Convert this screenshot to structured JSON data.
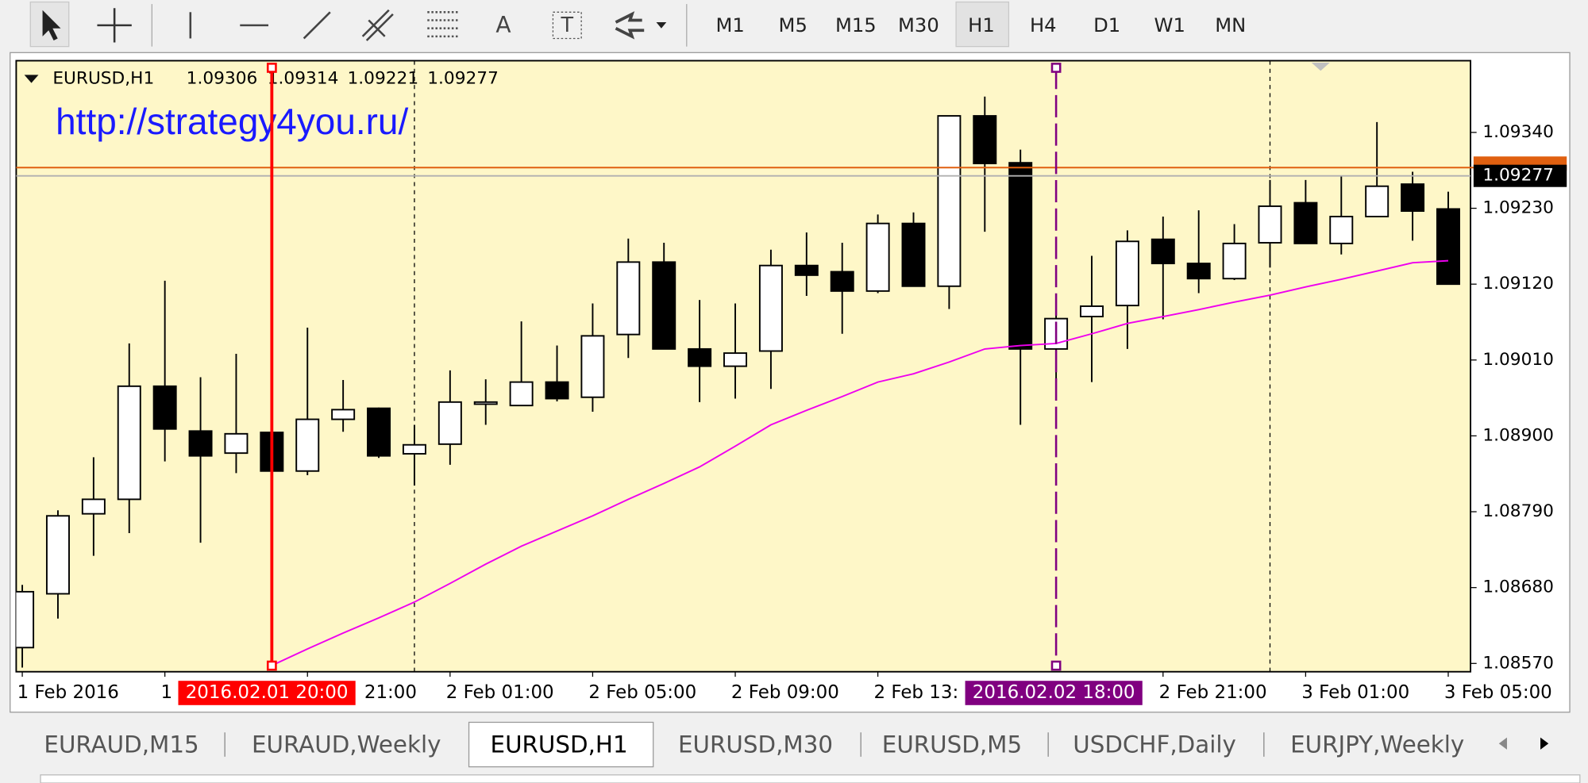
{
  "toolbar": {
    "text_tool": "A",
    "timeframes": [
      "M1",
      "M5",
      "M15",
      "M30",
      "H1",
      "H4",
      "D1",
      "W1",
      "MN"
    ],
    "active_timeframe": "H1"
  },
  "chart_data": {
    "type": "candlestick",
    "symbol": "EURUSD,H1",
    "ohlc_header": [
      1.09306,
      1.09314,
      1.09221,
      1.09277
    ],
    "watermark": "http://strategy4you.ru/",
    "categories": [
      "1 Feb 2016",
      null,
      null,
      null,
      "1",
      null,
      null,
      null,
      "21:00",
      null,
      null,
      null,
      "2 Feb 01:00",
      null,
      null,
      null,
      "2 Feb 05:00",
      null,
      null,
      null,
      "2 Feb 09:00",
      null,
      null,
      null,
      "2 Feb 13:",
      null,
      null,
      null,
      null,
      null,
      null,
      null,
      "2 Feb 21:00",
      null,
      null,
      null,
      "3 Feb 01:00",
      null,
      null,
      null,
      "3 Feb 05:00"
    ],
    "open": [
      1.08593,
      1.08671,
      1.08787,
      1.08808,
      1.08972,
      1.08907,
      1.08875,
      1.08905,
      1.08849,
      1.08924,
      1.0894,
      1.08874,
      1.08888,
      1.08946,
      1.08944,
      1.08978,
      1.08956,
      1.09047,
      1.09152,
      1.09026,
      1.09001,
      1.09023,
      1.09147,
      1.09138,
      1.0911,
      1.09208,
      1.09117,
      1.09364,
      1.09296,
      1.09026,
      1.09073,
      1.09089,
      1.09185,
      1.0915,
      1.09128,
      1.0918,
      1.09238,
      1.09179,
      1.09218,
      1.09265,
      1.09229
    ],
    "high": [
      1.08684,
      1.08792,
      1.08869,
      1.09034,
      1.09125,
      1.08985,
      1.09019,
      1.08906,
      1.09057,
      1.08981,
      1.08941,
      1.08916,
      1.08995,
      1.08982,
      1.09066,
      1.09031,
      1.09092,
      1.09186,
      1.0918,
      1.09097,
      1.09092,
      1.0917,
      1.09195,
      1.0918,
      1.09221,
      1.09224,
      1.09364,
      1.09392,
      1.09315,
      1.09075,
      1.09161,
      1.09198,
      1.09218,
      1.09227,
      1.09207,
      1.09271,
      1.09271,
      1.09276,
      1.09355,
      1.09283,
      1.09254
    ],
    "low": [
      1.08564,
      1.08635,
      1.08726,
      1.08759,
      1.08863,
      1.08745,
      1.08846,
      1.08846,
      1.08843,
      1.08906,
      1.08868,
      1.08828,
      1.08858,
      1.08916,
      1.08943,
      1.0895,
      1.08935,
      1.09013,
      1.09026,
      1.08949,
      1.08954,
      1.08968,
      1.09103,
      1.09048,
      1.09107,
      1.09117,
      1.09084,
      1.09196,
      1.08916,
      1.08978,
      1.08978,
      1.09026,
      1.09069,
      1.09107,
      1.09126,
      1.09144,
      1.09179,
      1.09163,
      1.09218,
      1.09183,
      1.0912
    ],
    "close": [
      1.08674,
      1.08784,
      1.08808,
      1.08972,
      1.0891,
      1.08871,
      1.08903,
      1.08849,
      1.08924,
      1.08938,
      1.08871,
      1.08887,
      1.08949,
      1.08949,
      1.08978,
      1.08954,
      1.09045,
      1.09152,
      1.09026,
      1.09001,
      1.0902,
      1.09147,
      1.09133,
      1.0911,
      1.09208,
      1.09117,
      1.09364,
      1.09295,
      1.09026,
      1.0907,
      1.09088,
      1.09182,
      1.0915,
      1.09128,
      1.09179,
      1.09233,
      1.09179,
      1.09218,
      1.09262,
      1.09226,
      1.0912
    ],
    "up_color": "#ffffff",
    "down_color": "#000000",
    "moving_average": {
      "color": "#ee00ee",
      "values": [
        null,
        null,
        null,
        null,
        null,
        null,
        null,
        1.08567,
        1.08591,
        1.08614,
        1.08636,
        1.08659,
        1.08686,
        1.08714,
        1.0874,
        1.08762,
        1.08784,
        1.08808,
        1.08831,
        1.08855,
        1.08885,
        1.08916,
        1.08937,
        1.08957,
        1.08978,
        1.0899,
        1.09007,
        1.09026,
        1.09031,
        1.09034,
        1.09048,
        1.09063,
        1.09073,
        1.09083,
        1.09094,
        1.09104,
        1.09116,
        1.09127,
        1.09139,
        1.09151,
        1.09154
      ]
    },
    "ask_line": {
      "value": 1.09289,
      "color": "#e06010"
    },
    "bid_line": {
      "value": 1.09277,
      "color": "#b0b0b0"
    },
    "markers": [
      {
        "label": "2016.02.01 20:00",
        "color": "#ff0000"
      },
      {
        "label": "2016.02.02 18:00",
        "color": "#800080"
      }
    ],
    "ylim": [
      1.08558,
      1.09444
    ],
    "yticks": [
      {
        "value": 1.0857,
        "label": "1.08570"
      },
      {
        "value": 1.0868,
        "label": "1.08680"
      },
      {
        "value": 1.0879,
        "label": "1.08790"
      },
      {
        "value": 1.089,
        "label": "1.08900"
      },
      {
        "value": 1.0901,
        "label": "1.09010"
      },
      {
        "value": 1.0912,
        "label": "1.09120"
      },
      {
        "value": 1.0923,
        "label": "1.09230"
      },
      {
        "value": 1.0934,
        "label": "1.09340"
      }
    ],
    "background": "#fef7c8"
  },
  "tabs": {
    "items": [
      "EURAUD,M15",
      "EURAUD,Weekly",
      "EURUSD,H1",
      "EURUSD,M30",
      "EURUSD,M5",
      "USDCHF,Daily",
      "EURJPY,Weekly"
    ],
    "active": "EURUSD,H1"
  }
}
